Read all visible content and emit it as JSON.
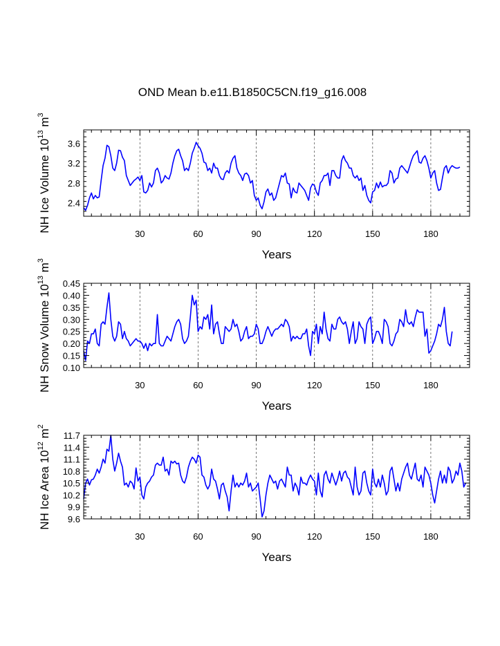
{
  "title": "OND Mean b.e11.B1850C5CN.f19_g16.008",
  "chart_data": [
    {
      "type": "line",
      "xlabel": "Years",
      "ylabel_main": "NH Ice Volume 10",
      "ylabel_exp": "13",
      "ylabel_unit": " m",
      "ylabel_unit_exp": "3",
      "xlim": [
        1,
        200
      ],
      "ylim": [
        2.13,
        3.87
      ],
      "xticks": [
        30,
        60,
        90,
        120,
        150,
        180
      ],
      "xtick_labels": [
        "30",
        "60",
        "90",
        "120",
        "150",
        "180"
      ],
      "yticks": [
        2.4,
        2.8,
        3.2,
        3.6
      ],
      "ytick_labels": [
        "2.4",
        "2.8",
        "3.2",
        "3.6"
      ],
      "grid_x": [
        30,
        60,
        90,
        120,
        150,
        180
      ],
      "color": "#0000ff",
      "series": [
        {
          "name": "NH Ice Volume",
          "values": [
            2.3,
            2.25,
            2.35,
            2.5,
            2.6,
            2.48,
            2.55,
            2.5,
            2.52,
            2.85,
            3.15,
            3.3,
            3.56,
            3.53,
            3.35,
            3.1,
            3.05,
            3.2,
            3.46,
            3.45,
            3.32,
            3.25,
            2.95,
            2.85,
            2.75,
            2.8,
            2.85,
            2.88,
            2.92,
            2.85,
            2.95,
            2.62,
            2.6,
            2.65,
            2.8,
            2.72,
            2.8,
            3.05,
            3.1,
            3.0,
            2.8,
            2.85,
            2.95,
            2.9,
            2.88,
            3.0,
            3.2,
            3.35,
            3.45,
            3.48,
            3.35,
            3.25,
            3.05,
            3.1,
            3.05,
            3.2,
            3.4,
            3.5,
            3.62,
            3.55,
            3.5,
            3.4,
            3.22,
            3.2,
            3.05,
            3.1,
            3.0,
            3.2,
            3.1,
            3.1,
            2.95,
            2.88,
            2.87,
            3.0,
            3.05,
            3.0,
            3.2,
            3.3,
            3.35,
            3.1,
            3.0,
            2.95,
            2.85,
            2.98,
            3.0,
            2.95,
            2.8,
            2.85,
            2.55,
            2.45,
            2.5,
            2.35,
            2.28,
            2.42,
            2.62,
            2.68,
            2.55,
            2.6,
            2.45,
            2.5,
            2.65,
            2.8,
            2.95,
            2.92,
            3.0,
            2.8,
            2.78,
            2.5,
            2.7,
            2.62,
            2.6,
            2.8,
            2.75,
            2.7,
            2.65,
            2.55,
            2.45,
            2.7,
            2.78,
            2.75,
            2.62,
            2.55,
            2.8,
            2.85,
            2.95,
            2.95,
            3.0,
            2.75,
            3.05,
            3.05,
            2.95,
            2.9,
            2.9,
            3.25,
            3.35,
            3.25,
            3.2,
            3.1,
            3.1,
            2.95,
            2.9,
            2.95,
            2.85,
            2.9,
            2.65,
            2.75,
            2.55,
            2.45,
            2.4,
            2.62,
            2.65,
            2.8,
            2.7,
            2.82,
            2.72,
            2.75,
            2.75,
            2.8,
            3.05,
            3.0,
            2.8,
            2.88,
            2.9,
            3.1,
            3.15,
            3.1,
            3.05,
            3.0,
            3.12,
            3.25,
            3.35,
            3.4,
            3.45,
            3.22,
            3.2,
            3.3,
            3.35,
            3.25,
            3.1,
            2.9,
            3.0,
            3.05,
            2.8,
            2.65,
            2.67,
            2.9,
            3.1,
            3.15,
            3.0,
            3.1,
            3.15,
            3.12,
            3.1,
            3.1,
            3.12
          ]
        }
      ]
    },
    {
      "type": "line",
      "xlabel": "Years",
      "ylabel_main": "NH Snow Volume 10",
      "ylabel_exp": "13",
      "ylabel_unit": " m",
      "ylabel_unit_exp": "3",
      "xlim": [
        1,
        200
      ],
      "ylim": [
        0.1,
        0.45
      ],
      "xticks": [
        30,
        60,
        90,
        120,
        150,
        180
      ],
      "xtick_labels": [
        "30",
        "60",
        "90",
        "120",
        "150",
        "180"
      ],
      "yticks": [
        0.1,
        0.15,
        0.2,
        0.25,
        0.3,
        0.35,
        0.4,
        0.45
      ],
      "ytick_labels": [
        "0.10",
        "0.15",
        "0.20",
        "0.25",
        "0.30",
        "0.35",
        "0.40",
        "0.45"
      ],
      "grid_x": [
        30,
        60,
        90,
        120,
        150,
        180
      ],
      "color": "#0000ff",
      "series": [
        {
          "name": "NH Snow Volume",
          "values": [
            0.17,
            0.13,
            0.21,
            0.2,
            0.24,
            0.24,
            0.26,
            0.2,
            0.19,
            0.28,
            0.29,
            0.28,
            0.35,
            0.41,
            0.3,
            0.23,
            0.21,
            0.23,
            0.29,
            0.28,
            0.22,
            0.25,
            0.22,
            0.21,
            0.19,
            0.2,
            0.21,
            0.22,
            0.21,
            0.21,
            0.2,
            0.18,
            0.2,
            0.17,
            0.2,
            0.19,
            0.2,
            0.2,
            0.32,
            0.2,
            0.19,
            0.19,
            0.21,
            0.23,
            0.22,
            0.21,
            0.24,
            0.27,
            0.29,
            0.3,
            0.28,
            0.22,
            0.2,
            0.21,
            0.23,
            0.31,
            0.4,
            0.36,
            0.38,
            0.25,
            0.27,
            0.26,
            0.31,
            0.3,
            0.32,
            0.26,
            0.36,
            0.24,
            0.28,
            0.29,
            0.24,
            0.2,
            0.2,
            0.27,
            0.26,
            0.25,
            0.26,
            0.3,
            0.27,
            0.28,
            0.25,
            0.21,
            0.22,
            0.25,
            0.27,
            0.22,
            0.23,
            0.23,
            0.24,
            0.28,
            0.26,
            0.2,
            0.2,
            0.22,
            0.25,
            0.27,
            0.25,
            0.23,
            0.25,
            0.26,
            0.26,
            0.27,
            0.28,
            0.27,
            0.3,
            0.29,
            0.27,
            0.21,
            0.23,
            0.22,
            0.23,
            0.22,
            0.22,
            0.24,
            0.24,
            0.26,
            0.19,
            0.15,
            0.25,
            0.24,
            0.28,
            0.2,
            0.27,
            0.24,
            0.33,
            0.26,
            0.22,
            0.21,
            0.28,
            0.26,
            0.26,
            0.3,
            0.31,
            0.29,
            0.28,
            0.29,
            0.26,
            0.2,
            0.25,
            0.29,
            0.2,
            0.22,
            0.29,
            0.27,
            0.26,
            0.2,
            0.28,
            0.3,
            0.31,
            0.2,
            0.22,
            0.25,
            0.25,
            0.23,
            0.2,
            0.3,
            0.29,
            0.27,
            0.2,
            0.19,
            0.21,
            0.24,
            0.25,
            0.3,
            0.29,
            0.27,
            0.34,
            0.29,
            0.28,
            0.29,
            0.27,
            0.31,
            0.34,
            0.33,
            0.33,
            0.33,
            0.23,
            0.26,
            0.16,
            0.17,
            0.19,
            0.21,
            0.24,
            0.28,
            0.27,
            0.3,
            0.35,
            0.25,
            0.2,
            0.19,
            0.25
          ]
        }
      ]
    },
    {
      "type": "line",
      "xlabel": "Years",
      "ylabel_main": "NH Ice Area 10",
      "ylabel_exp": "12",
      "ylabel_unit": " m",
      "ylabel_unit_exp": "2",
      "xlim": [
        1,
        200
      ],
      "ylim": [
        9.6,
        11.7
      ],
      "xticks": [
        30,
        60,
        90,
        120,
        150,
        180
      ],
      "xtick_labels": [
        "30",
        "60",
        "90",
        "120",
        "150",
        "180"
      ],
      "yticks": [
        9.6,
        9.9,
        10.2,
        10.5,
        10.8,
        11.1,
        11.4,
        11.7
      ],
      "ytick_labels": [
        "9.6",
        "9.9",
        "10.2",
        "10.5",
        "10.8",
        "11.1",
        "11.4",
        "11.7"
      ],
      "grid_x": [
        30,
        60,
        90,
        120,
        150,
        180
      ],
      "color": "#0000ff",
      "series": [
        {
          "name": "NH Ice Area",
          "values": [
            10.1,
            10.5,
            10.6,
            10.45,
            10.58,
            10.6,
            10.7,
            10.85,
            10.75,
            10.9,
            11.1,
            11.0,
            11.35,
            11.3,
            11.7,
            11.1,
            10.8,
            11.0,
            11.25,
            11.05,
            10.9,
            10.45,
            10.5,
            10.4,
            10.55,
            10.5,
            10.35,
            10.88,
            10.55,
            10.65,
            10.2,
            10.1,
            10.4,
            10.5,
            10.55,
            10.65,
            10.7,
            10.95,
            11.0,
            10.95,
            10.95,
            11.15,
            10.8,
            10.85,
            10.7,
            11.05,
            11.0,
            11.05,
            10.98,
            11.0,
            10.7,
            10.55,
            10.5,
            10.65,
            10.9,
            11.05,
            11.15,
            11.1,
            11.0,
            11.2,
            11.15,
            10.7,
            10.65,
            10.45,
            10.35,
            10.45,
            10.85,
            10.6,
            10.55,
            10.35,
            10.1,
            10.45,
            10.5,
            10.3,
            10.15,
            9.8,
            10.3,
            10.7,
            10.4,
            10.5,
            10.4,
            10.5,
            10.45,
            10.55,
            10.75,
            10.4,
            10.5,
            10.3,
            10.35,
            10.4,
            10.5,
            10.1,
            9.65,
            9.8,
            10.2,
            10.5,
            10.7,
            10.6,
            10.5,
            10.55,
            10.35,
            10.55,
            10.6,
            10.5,
            10.4,
            10.9,
            10.7,
            10.7,
            10.3,
            10.5,
            10.4,
            10.2,
            10.65,
            10.5,
            10.5,
            10.45,
            10.6,
            10.7,
            10.6,
            10.55,
            10.2,
            10.75,
            10.3,
            10.15,
            10.7,
            10.8,
            10.6,
            10.5,
            10.75,
            10.6,
            10.45,
            10.6,
            10.8,
            10.55,
            10.75,
            10.8,
            10.65,
            10.6,
            10.4,
            10.2,
            10.9,
            10.4,
            10.2,
            10.3,
            10.75,
            10.8,
            10.5,
            10.3,
            10.2,
            10.85,
            10.5,
            10.4,
            10.6,
            10.4,
            10.7,
            10.5,
            10.2,
            10.3,
            10.8,
            10.9,
            10.6,
            10.3,
            10.5,
            10.3,
            10.6,
            10.75,
            10.9,
            11.0,
            10.7,
            10.6,
            10.8,
            11.0,
            10.6,
            10.55,
            10.7,
            10.4,
            10.9,
            10.8,
            10.7,
            10.5,
            10.2,
            10.0,
            10.3,
            10.6,
            10.8,
            10.5,
            10.7,
            10.5,
            10.9,
            10.8,
            10.5,
            10.6,
            10.8,
            10.7,
            11.0,
            10.8,
            10.4,
            10.5
          ]
        }
      ]
    }
  ]
}
